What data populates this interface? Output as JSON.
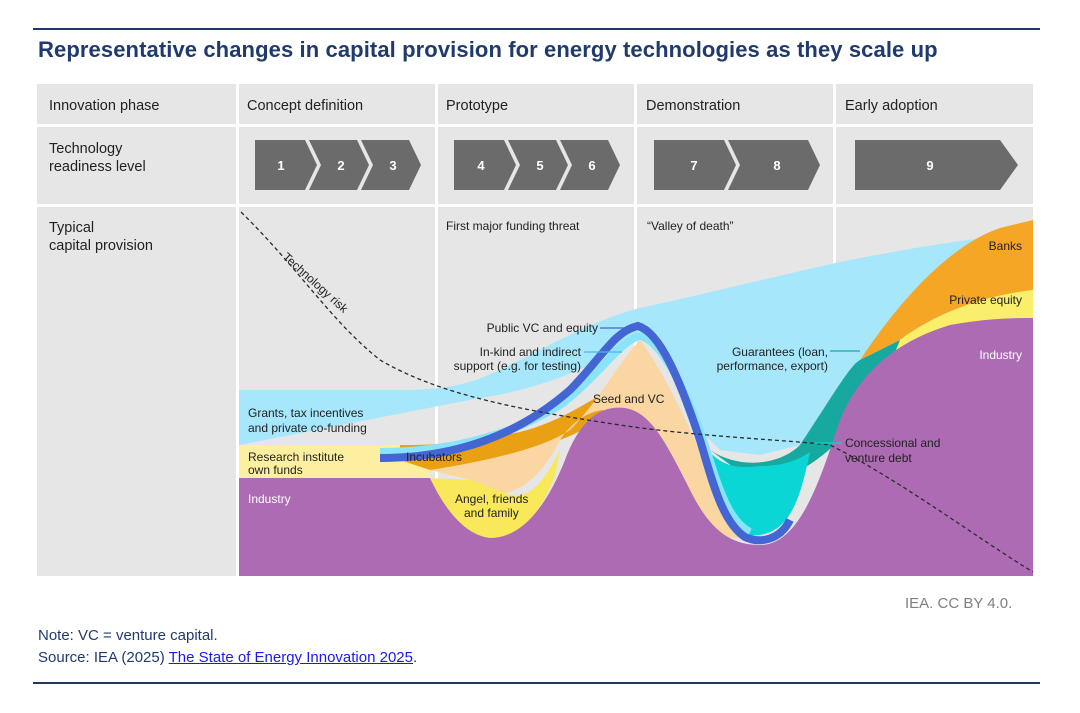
{
  "title": "Representative changes in capital provision for energy technologies as they scale up",
  "row_labels": {
    "phase": "Innovation phase",
    "trl_line1": "Technology",
    "trl_line2": "readiness level",
    "capital_line1": "Typical",
    "capital_line2": "capital provision"
  },
  "phases": [
    "Concept definition",
    "Prototype",
    "Demonstration",
    "Early adoption"
  ],
  "trl_levels": [
    "1",
    "2",
    "3",
    "4",
    "5",
    "6",
    "7",
    "8",
    "9"
  ],
  "annotations": {
    "funding_threat": "First major funding threat",
    "valley_of_death": "“Valley of death”",
    "technology_risk": "Technology risk"
  },
  "flows": {
    "grants_line1": "Grants, tax incentives",
    "grants_line2": "and private co-funding",
    "research_line1": "Research institute",
    "research_line2": "own funds",
    "industry_left": "Industry",
    "incubators": "Incubators",
    "angel_line1": "Angel, friends",
    "angel_line2": "and family",
    "seed_vc": "Seed and VC",
    "public_vc": "Public VC and equity",
    "inkind_line1": "In-kind and indirect",
    "inkind_line2": "support (e.g. for testing)",
    "guarantees_line1": "Guarantees (loan,",
    "guarantees_line2": "performance, export)",
    "concessional_line1": "Concessional and",
    "concessional_line2": "venture debt",
    "banks": "Banks",
    "private_equity": "Private equity",
    "industry_right": "Industry"
  },
  "colors": {
    "title": "#1f3b6e",
    "cell_bg": "#e6e6e6",
    "trl_arrow": "#6b6b6b",
    "grants": "#a6e7fb",
    "research": "#fcf0a0",
    "industry": "#ad6bb3",
    "incubators": "#e9a012",
    "angel": "#f8e85a",
    "seed": "#fad6a3",
    "public_vc": "#4466d4",
    "inkind": "#89e4fb",
    "concessional": "#0ad6d6",
    "guarantees": "#17a8a0",
    "banks": "#f5a625",
    "private_equity": "#f9ef6a"
  },
  "credit": "IEA. CC BY 4.0.",
  "note": "Note: VC = venture capital.",
  "source_prefix": "Source: IEA (2025) ",
  "source_link": "The State of Energy Innovation 2025",
  "source_suffix": "."
}
